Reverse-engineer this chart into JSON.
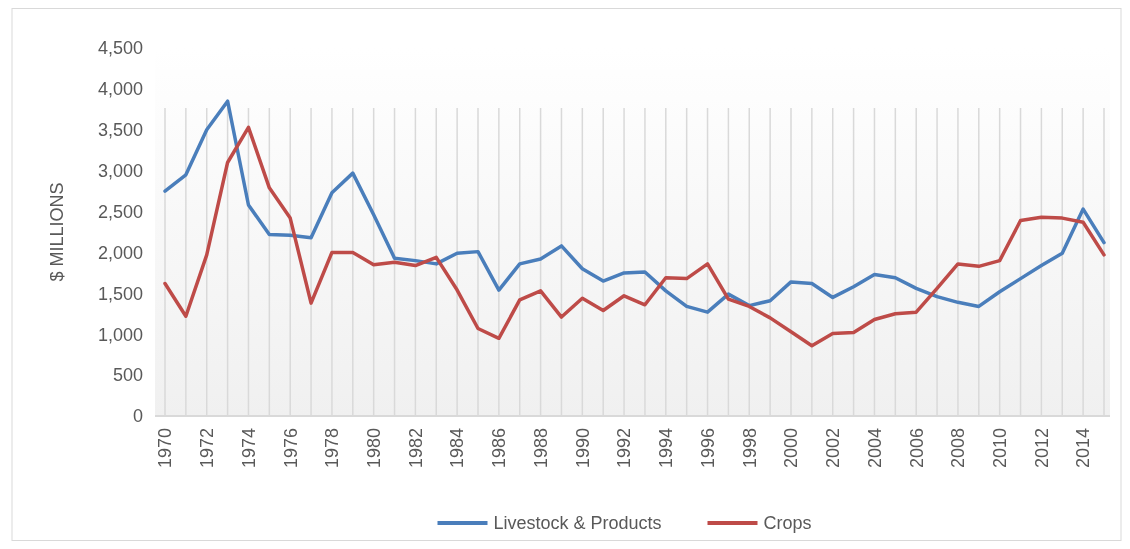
{
  "chart_data": {
    "type": "line",
    "ylabel": "$ MILLIONS",
    "categories": [
      "1970",
      null,
      "1972",
      null,
      "1974",
      null,
      "1976",
      null,
      "1978",
      null,
      "1980",
      null,
      "1982",
      null,
      "1984",
      null,
      "1986",
      null,
      "1988",
      null,
      "1990",
      null,
      "1992",
      null,
      "1994",
      null,
      "1996",
      null,
      "1998",
      null,
      "2000",
      null,
      "2002",
      null,
      "2004",
      null,
      "2006",
      null,
      "2008",
      null,
      "2010",
      null,
      "2012",
      null,
      "2014",
      null
    ],
    "series": [
      {
        "name": "Livestock & Products",
        "color": "#4a7ebb",
        "values": [
          2750,
          2950,
          3500,
          3850,
          2580,
          2220,
          2210,
          2180,
          2730,
          2970,
          2460,
          1930,
          1900,
          1860,
          1990,
          2010,
          1540,
          1860,
          1920,
          2080,
          1800,
          1650,
          1750,
          1760,
          1530,
          1340,
          1270,
          1490,
          1350,
          1410,
          1640,
          1620,
          1450,
          1580,
          1730,
          1690,
          1560,
          1460,
          1390,
          1340,
          1520,
          1680,
          1840,
          1990,
          2530,
          2120
        ]
      },
      {
        "name": "Crops",
        "color": "#be4b48",
        "values": [
          1620,
          1220,
          1970,
          3100,
          3530,
          2790,
          2420,
          1380,
          2000,
          2000,
          1850,
          1880,
          1840,
          1940,
          1540,
          1070,
          950,
          1420,
          1530,
          1210,
          1440,
          1290,
          1470,
          1360,
          1690,
          1680,
          1860,
          1430,
          1340,
          1200,
          1030,
          860,
          1010,
          1020,
          1180,
          1250,
          1270,
          1560,
          1860,
          1830,
          1900,
          2390,
          2430,
          2420,
          2370,
          1970
        ]
      }
    ],
    "ylim": [
      0,
      4500
    ],
    "yticks": [
      {
        "value": 0,
        "label": "0"
      },
      {
        "value": 500,
        "label": "500"
      },
      {
        "value": 1000,
        "label": "1,000"
      },
      {
        "value": 1500,
        "label": "1,500"
      },
      {
        "value": 2000,
        "label": "2,000"
      },
      {
        "value": 2500,
        "label": "2,500"
      },
      {
        "value": 3000,
        "label": "3,000"
      },
      {
        "value": 3500,
        "label": "3,500"
      },
      {
        "value": 4000,
        "label": "4,000"
      },
      {
        "value": 4500,
        "label": "4,500"
      }
    ],
    "grid": "x",
    "legend": "bottom",
    "marker": "none",
    "line_style": "solid"
  }
}
